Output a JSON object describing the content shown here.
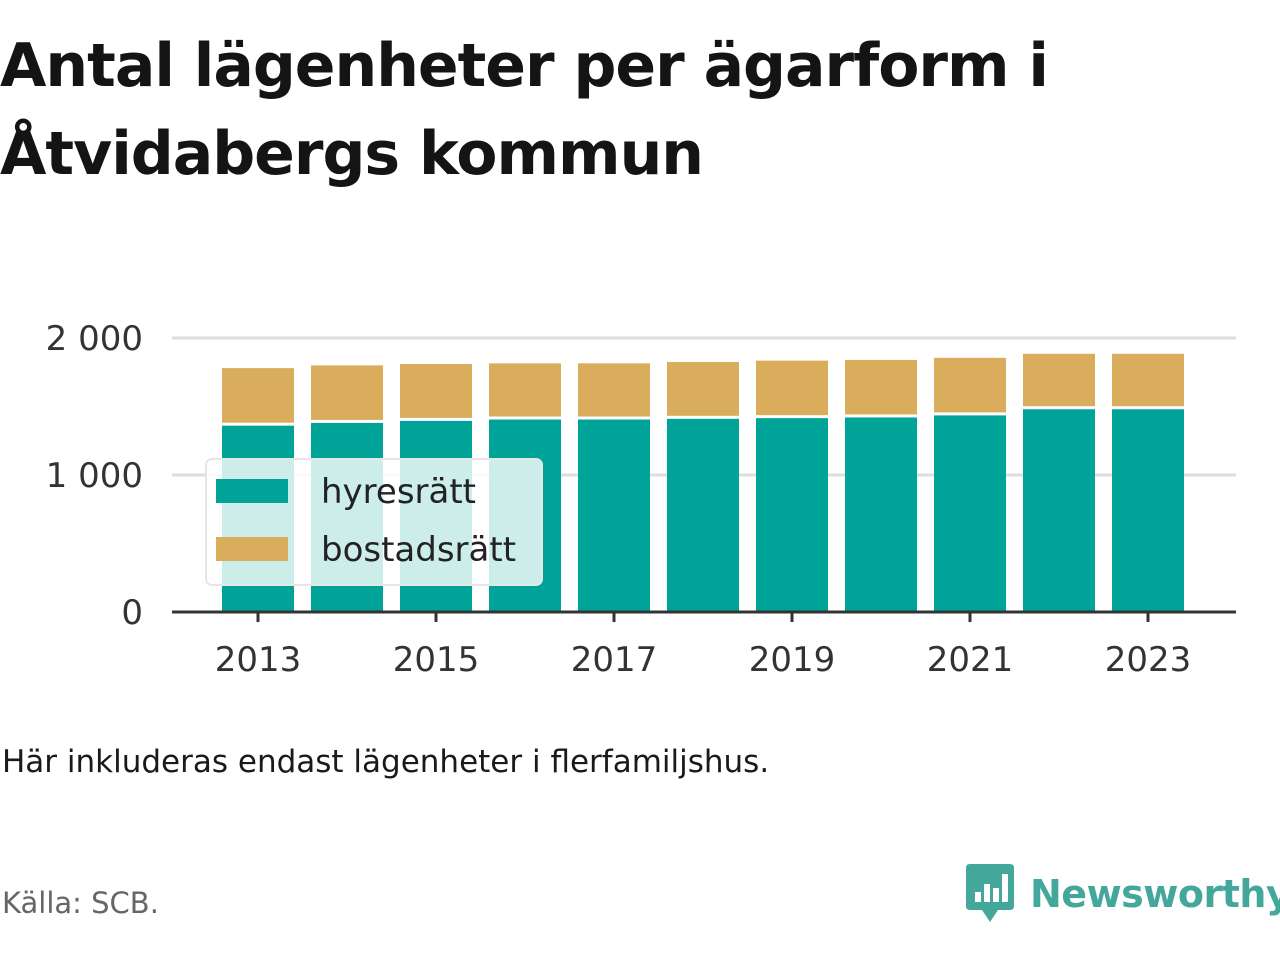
{
  "title": "Antal lägenheter per ägarform i Åtvidabergs kommun",
  "note": "Här inkluderas endast lägenheter i flerfamiljshus.",
  "source": "Källa: SCB.",
  "brand": {
    "name": "Newsworthy",
    "icon": "newsworthy-logo-icon",
    "color": "#44a79b"
  },
  "chart_data": {
    "type": "bar",
    "stacked": true,
    "categories": [
      2013,
      2014,
      2015,
      2016,
      2017,
      2018,
      2019,
      2020,
      2021,
      2022,
      2023
    ],
    "x_ticks": [
      2013,
      2015,
      2017,
      2019,
      2021,
      2023
    ],
    "series": [
      {
        "name": "hyresrätt",
        "color": "#00a398",
        "values": [
          1360,
          1380,
          1395,
          1405,
          1405,
          1410,
          1415,
          1420,
          1435,
          1480,
          1480
        ]
      },
      {
        "name": "bostadsrätt",
        "color": "#d9ad5b",
        "values": [
          420,
          420,
          415,
          410,
          410,
          415,
          420,
          420,
          420,
          405,
          405
        ]
      }
    ],
    "ylim": [
      0,
      2000
    ],
    "y_ticks": [
      0,
      1000,
      2000
    ],
    "y_tick_labels": [
      "0",
      "1 000",
      "2 000"
    ],
    "grid": true,
    "legend_position": "inside-left"
  }
}
